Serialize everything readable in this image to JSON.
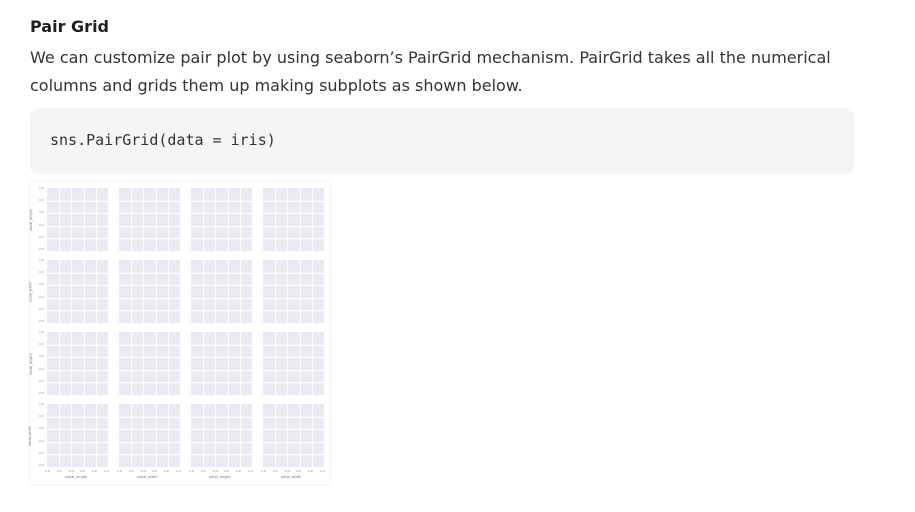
{
  "heading": "Pair Grid",
  "paragraph": "We can customize pair plot by using seaborn’s PairGrid mechanism. PairGrid takes all the numerical columns and grids them up making subplots as shown below.",
  "code": "sns.PairGrid(data = iris)",
  "figure": {
    "variables": [
      "sepal_length",
      "sepal_width",
      "petal_length",
      "petal_width"
    ],
    "y_ticks": [
      "1.0",
      "0.8",
      "0.6",
      "0.4",
      "0.2",
      "0.0"
    ],
    "x_ticks": [
      "0.0",
      "0.2",
      "0.4",
      "0.6",
      "0.8",
      "1.0"
    ]
  }
}
